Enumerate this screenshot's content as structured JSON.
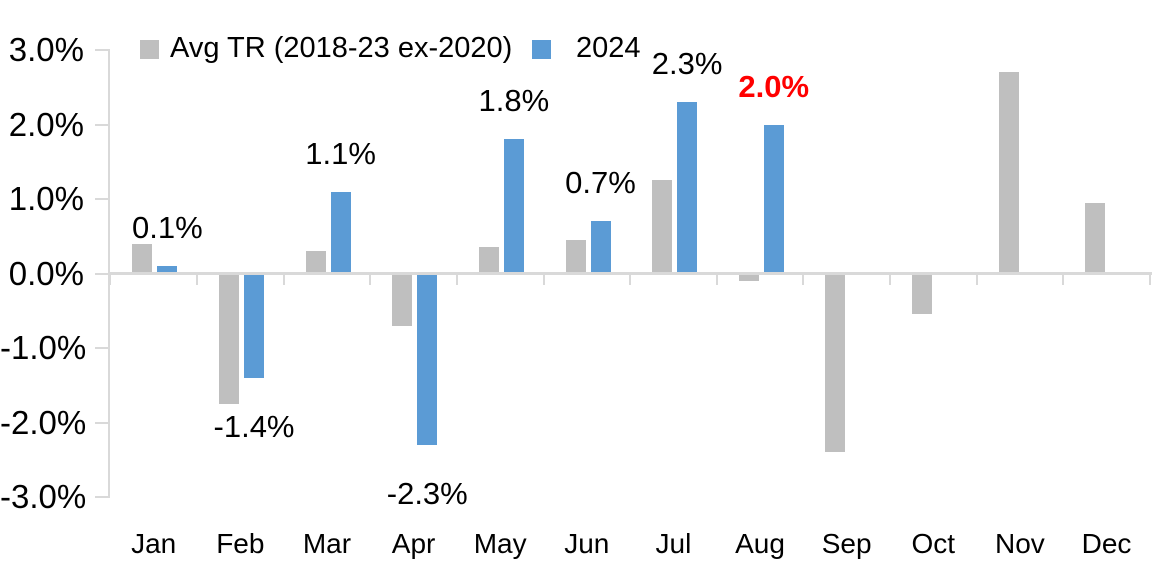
{
  "chart_data": {
    "type": "bar",
    "title": "",
    "categories": [
      "Jan",
      "Feb",
      "Mar",
      "Apr",
      "May",
      "Jun",
      "Jul",
      "Aug",
      "Sep",
      "Oct",
      "Nov",
      "Dec"
    ],
    "series": [
      {
        "name": "Avg TR (2018-23 ex-2020)",
        "color": "#BFBFBF",
        "values": [
          0.4,
          -1.75,
          0.3,
          -0.7,
          0.35,
          0.45,
          1.25,
          -0.1,
          -2.4,
          -0.55,
          2.7,
          0.95
        ]
      },
      {
        "name": "2024",
        "color": "#5B9BD5",
        "values": [
          0.1,
          -1.4,
          1.1,
          -2.3,
          1.8,
          0.7,
          2.3,
          2.0,
          null,
          null,
          null,
          null
        ],
        "data_labels": [
          {
            "text": "0.1%",
            "color": "#000000",
            "bold": false
          },
          {
            "text": "-1.4%",
            "color": "#000000",
            "bold": false
          },
          {
            "text": "1.1%",
            "color": "#000000",
            "bold": false
          },
          {
            "text": "-2.3%",
            "color": "#000000",
            "bold": false
          },
          {
            "text": "1.8%",
            "color": "#000000",
            "bold": false
          },
          {
            "text": "0.7%",
            "color": "#000000",
            "bold": false
          },
          {
            "text": "2.3%",
            "color": "#000000",
            "bold": false
          },
          {
            "text": "2.0%",
            "color": "#FF0000",
            "bold": true
          }
        ]
      }
    ],
    "y_axis": {
      "min": -3.0,
      "max": 3.0,
      "tick_step": 1.0,
      "tick_labels": [
        "3.0%",
        "2.0%",
        "1.0%",
        "0.0%",
        "-1.0%",
        "-2.0%",
        "-3.0%"
      ]
    },
    "x_axis": {
      "tick_marks": "category-boundaries"
    },
    "legend": {
      "position": "top",
      "items": [
        {
          "label": "Avg TR (2018-23 ex-2020)",
          "color": "#BFBFBF"
        },
        {
          "label": "2024",
          "color": "#5B9BD5"
        }
      ]
    },
    "grid": false,
    "colors": {
      "axis": "#D9D9D9",
      "text": "#000000",
      "highlight": "#FF0000",
      "background": "#FFFFFF"
    }
  }
}
